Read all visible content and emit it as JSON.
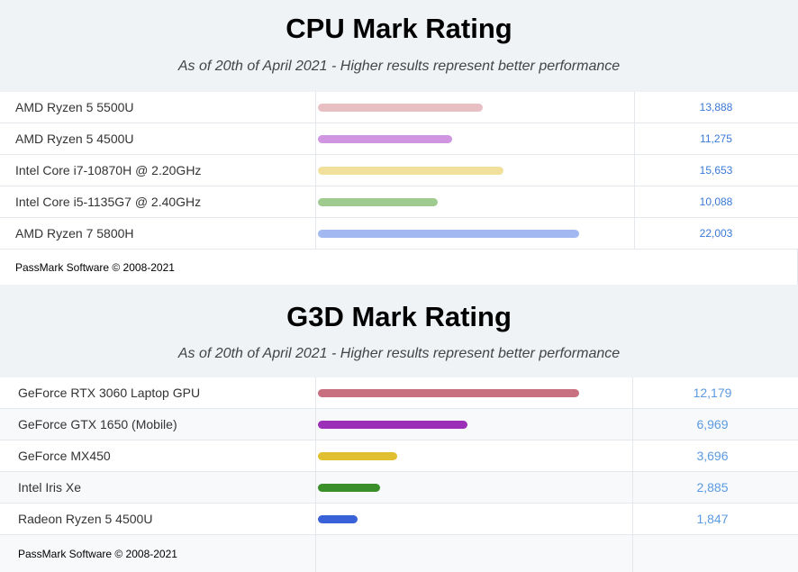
{
  "chart_data": [
    {
      "type": "bar",
      "title": "CPU Mark Rating",
      "subtitle": "As of 20th of April 2021 - Higher results represent better performance",
      "categories": [
        "AMD Ryzen 5 5500U",
        "AMD Ryzen 5 4500U",
        "Intel Core i7-10870H @ 2.20GHz",
        "Intel Core i5-1135G7 @ 2.40GHz",
        "AMD Ryzen 7 5800H"
      ],
      "values": [
        13888,
        11275,
        15653,
        10088,
        22003
      ],
      "value_labels": [
        "13,888",
        "11,275",
        "15,653",
        "10,088",
        "22,003"
      ],
      "colors": [
        "#e8c0c4",
        "#cf95e0",
        "#f0e09c",
        "#9fcb8f",
        "#a2b8f0"
      ],
      "xlim": [
        0,
        22003
      ],
      "footer": "PassMark Software © 2008-2021"
    },
    {
      "type": "bar",
      "title": "G3D Mark Rating",
      "subtitle": "As of 20th of April 2021 - Higher results represent better performance",
      "categories": [
        "GeForce RTX 3060 Laptop GPU",
        "GeForce GTX 1650 (Mobile)",
        "GeForce MX450",
        "Intel Iris Xe",
        "Radeon Ryzen 5 4500U"
      ],
      "values": [
        12179,
        6969,
        3696,
        2885,
        1847
      ],
      "value_labels": [
        "12,179",
        "6,969",
        "3,696",
        "2,885",
        "1,847"
      ],
      "colors": [
        "#c87080",
        "#9b2fb8",
        "#e0c030",
        "#3a8f2a",
        "#3a62d8"
      ],
      "xlim": [
        0,
        12179
      ],
      "footer": "PassMark Software © 2008-2021"
    }
  ]
}
